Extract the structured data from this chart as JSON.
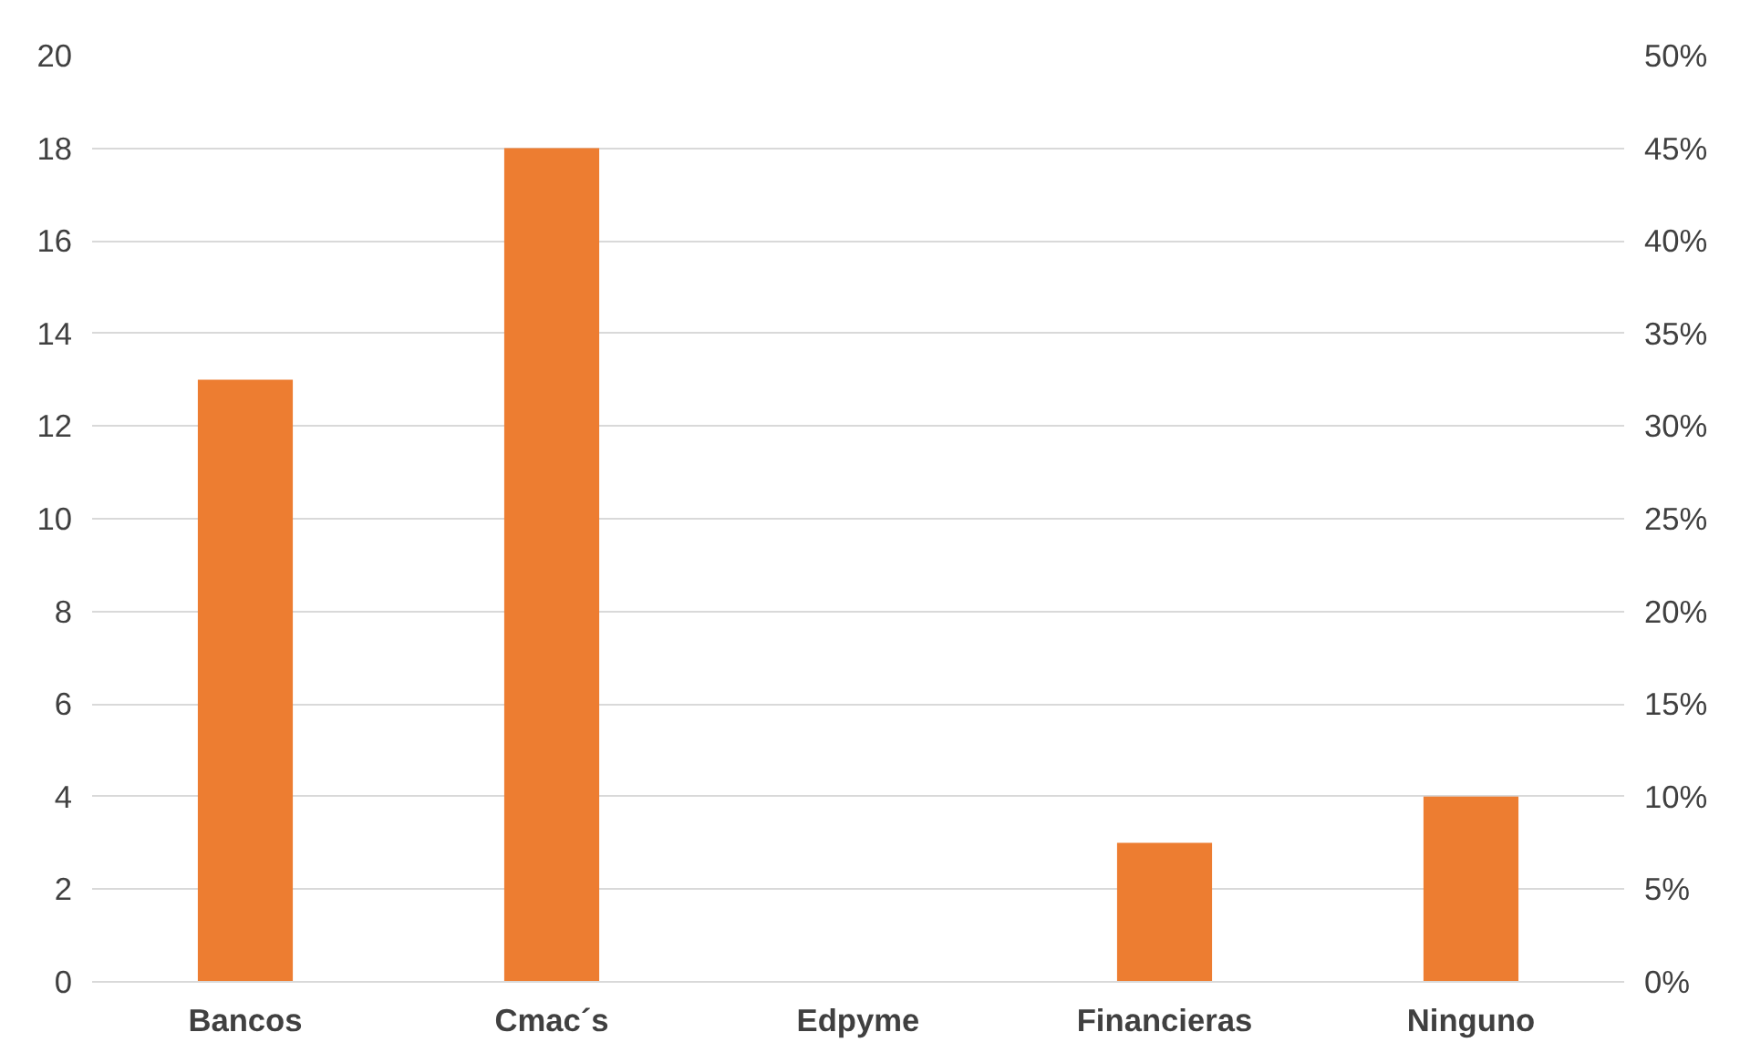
{
  "chart_data": {
    "type": "bar",
    "categories": [
      "Bancos",
      "Cmac´s",
      "Edpyme",
      "Financieras",
      "Ninguno"
    ],
    "series": [
      {
        "color": "#ed7d31",
        "values": [
          13,
          18,
          0,
          3,
          4
        ]
      }
    ],
    "ylim": [
      0,
      20
    ],
    "yticks": [
      0,
      2,
      4,
      6,
      8,
      10,
      12,
      14,
      16,
      18,
      20
    ],
    "y2lim": [
      0,
      50
    ],
    "y2ticks": [
      {
        "value": 0,
        "label": "0%"
      },
      {
        "value": 5,
        "label": "5%"
      },
      {
        "value": 10,
        "label": "10%"
      },
      {
        "value": 15,
        "label": "15%"
      },
      {
        "value": 20,
        "label": "20%"
      },
      {
        "value": 25,
        "label": "25%"
      },
      {
        "value": 30,
        "label": "30%"
      },
      {
        "value": 35,
        "label": "35%"
      },
      {
        "value": 40,
        "label": "40%"
      },
      {
        "value": 45,
        "label": "45%"
      },
      {
        "value": 50,
        "label": "50%"
      }
    ],
    "grid": "y"
  }
}
